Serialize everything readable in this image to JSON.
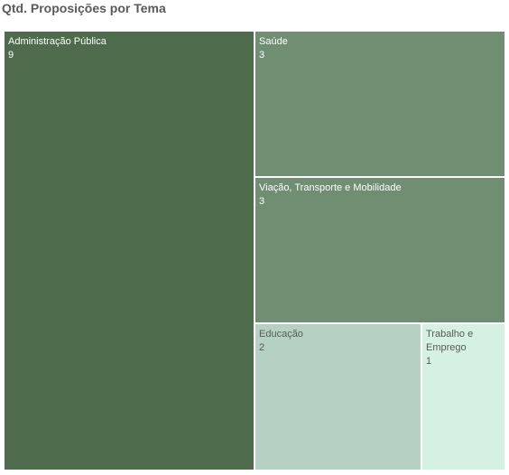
{
  "chart_data": {
    "type": "treemap",
    "title": "Qtd. Proposições por Tema",
    "items": [
      {
        "label": "Administração Pública",
        "value": 9,
        "color": "#4e6b4c",
        "text_color": "#ffffff"
      },
      {
        "label": "Saúde",
        "value": 3,
        "color": "#6f8e72",
        "text_color": "#ffffff"
      },
      {
        "label": "Viação, Transporte e Mobilidade",
        "value": 3,
        "color": "#6f8e72",
        "text_color": "#ffffff"
      },
      {
        "label": "Educação",
        "value": 2,
        "color": "#b5d1c1",
        "text_color": "#595959"
      },
      {
        "label": "Trabalho e Emprego",
        "value": 1,
        "color": "#d4f1e1",
        "text_color": "#595959"
      }
    ]
  }
}
